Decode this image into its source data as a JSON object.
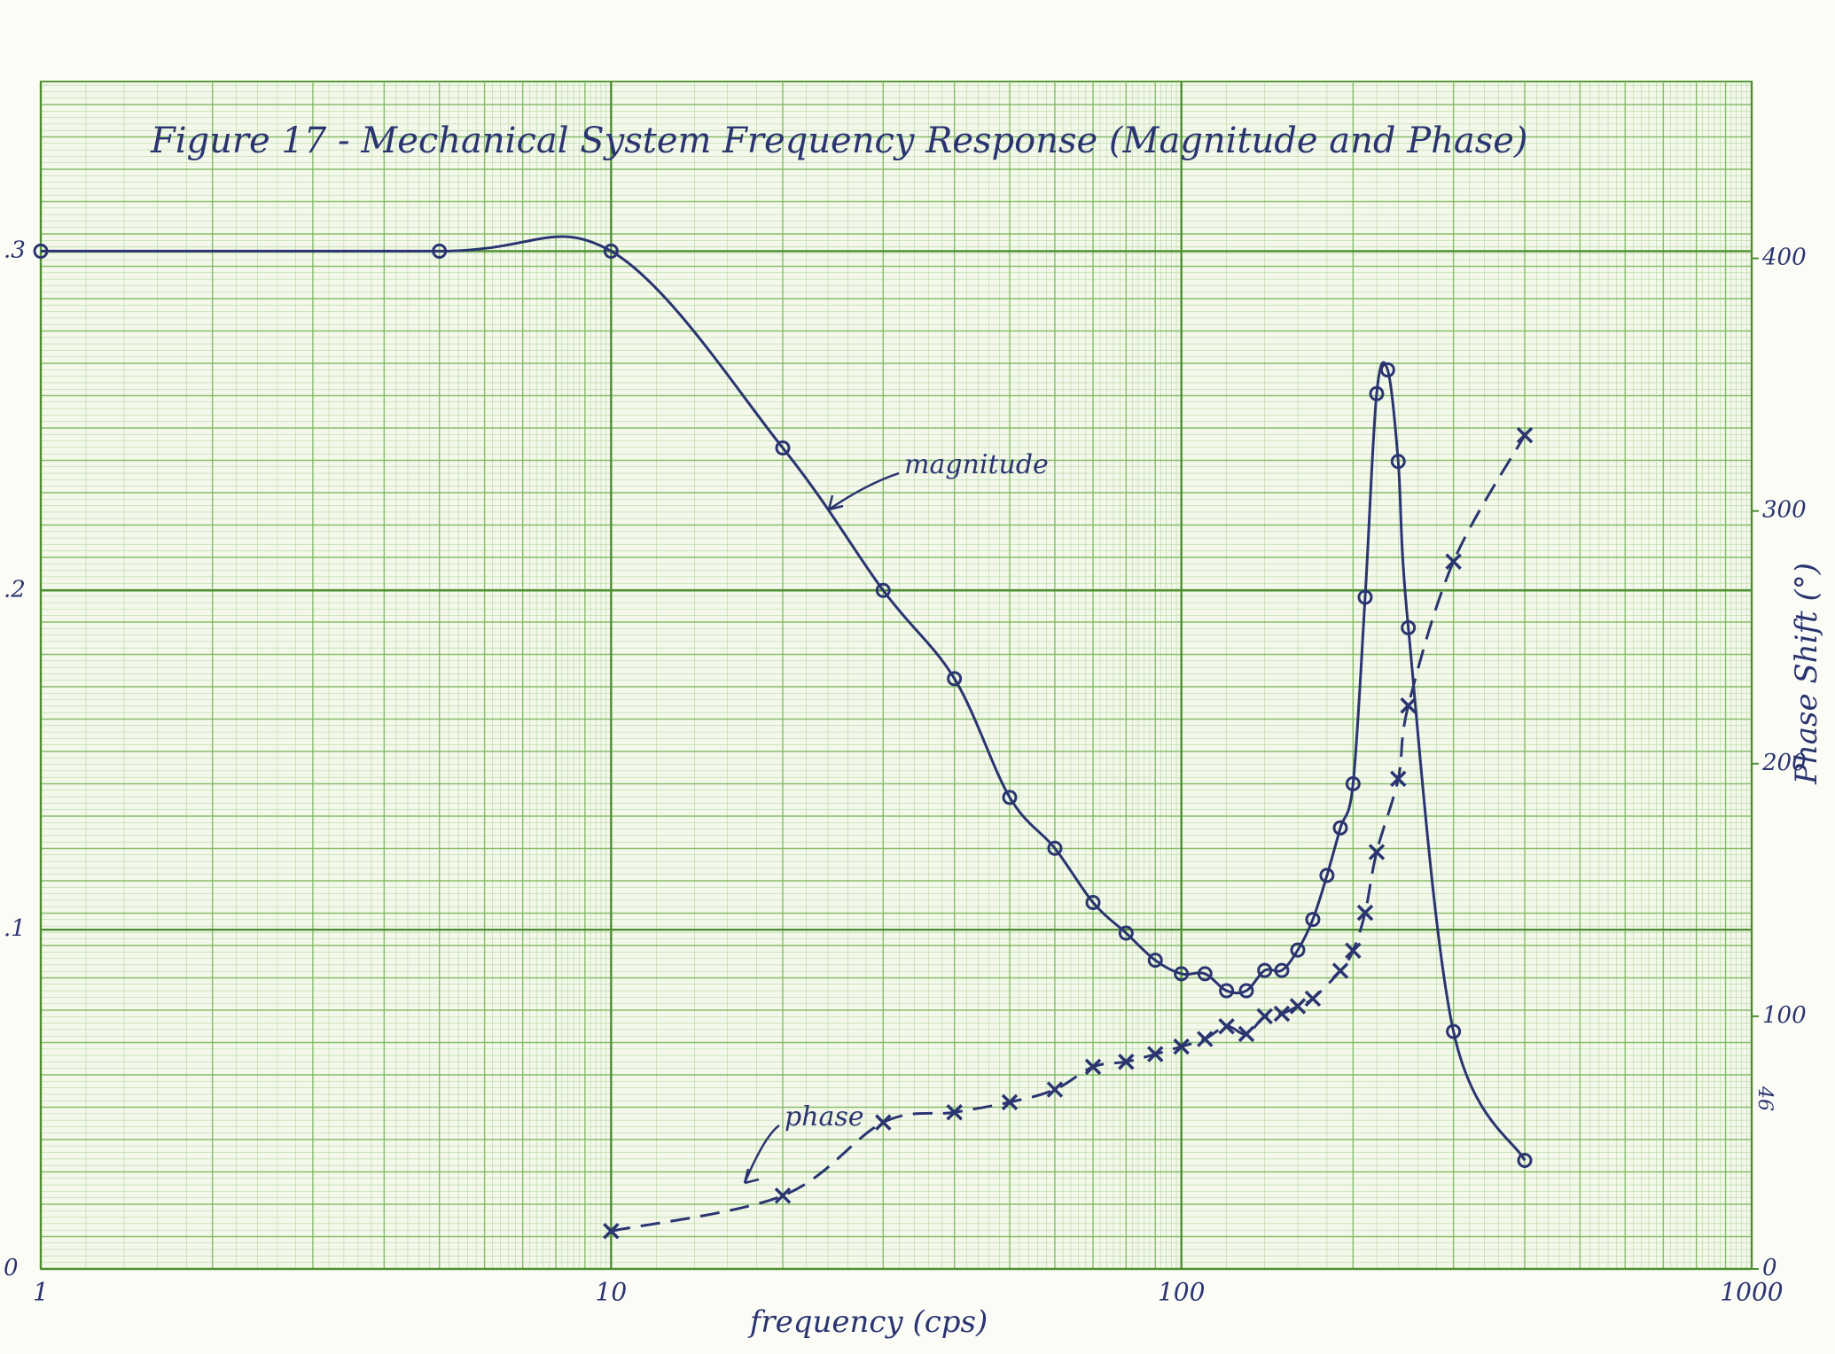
{
  "chart_data": {
    "type": "line",
    "title": "Figure 17 - Mechanical System Frequency Response (Magnitude and Phase)",
    "x_label": "frequency (cps)",
    "y2_label": "Phase Shift (°)",
    "page_number": "46",
    "x_scale": "log",
    "xlim": [
      1,
      1000
    ],
    "xticks": [
      1,
      10,
      100,
      1000
    ],
    "ylim": [
      0,
      0.35
    ],
    "yticks": [
      0,
      {
        "value": 0.1,
        "label": ".1"
      },
      {
        "value": 0.2,
        "label": ".2"
      },
      {
        "value": 0.3,
        "label": ".3"
      }
    ],
    "y2lim": [
      0,
      470
    ],
    "y2ticks": [
      0,
      100,
      200,
      300,
      400
    ],
    "grid": true,
    "series": [
      {
        "name": "magnitude",
        "axis": "y",
        "color": "#2a3470",
        "marker": "o",
        "dashed": false,
        "x": [
          1,
          5,
          10,
          20,
          30,
          40,
          50,
          60,
          70,
          80,
          90,
          100,
          110,
          120,
          130,
          140,
          150,
          160,
          170,
          180,
          190,
          200,
          210,
          220,
          230,
          240,
          250,
          300,
          400
        ],
        "values": [
          0.3,
          0.3,
          0.3,
          0.242,
          0.2,
          0.174,
          0.139,
          0.124,
          0.108,
          0.099,
          0.091,
          0.087,
          0.087,
          0.082,
          0.082,
          0.088,
          0.088,
          0.094,
          0.103,
          0.116,
          0.13,
          0.143,
          0.198,
          0.258,
          0.265,
          0.238,
          0.189,
          0.07,
          0.032
        ]
      },
      {
        "name": "phase",
        "axis": "y2",
        "color": "#2a3470",
        "marker": "x",
        "dashed": true,
        "x": [
          10,
          20,
          30,
          40,
          50,
          60,
          70,
          80,
          90,
          100,
          110,
          120,
          130,
          140,
          150,
          160,
          170,
          190,
          200,
          210,
          220,
          240,
          250,
          300,
          400
        ],
        "values": [
          15,
          29,
          58,
          62,
          66,
          71,
          80,
          82,
          85,
          88,
          91,
          96,
          93,
          100,
          101,
          104,
          107,
          118,
          126,
          141,
          165,
          194,
          223,
          280,
          330
        ]
      }
    ]
  }
}
